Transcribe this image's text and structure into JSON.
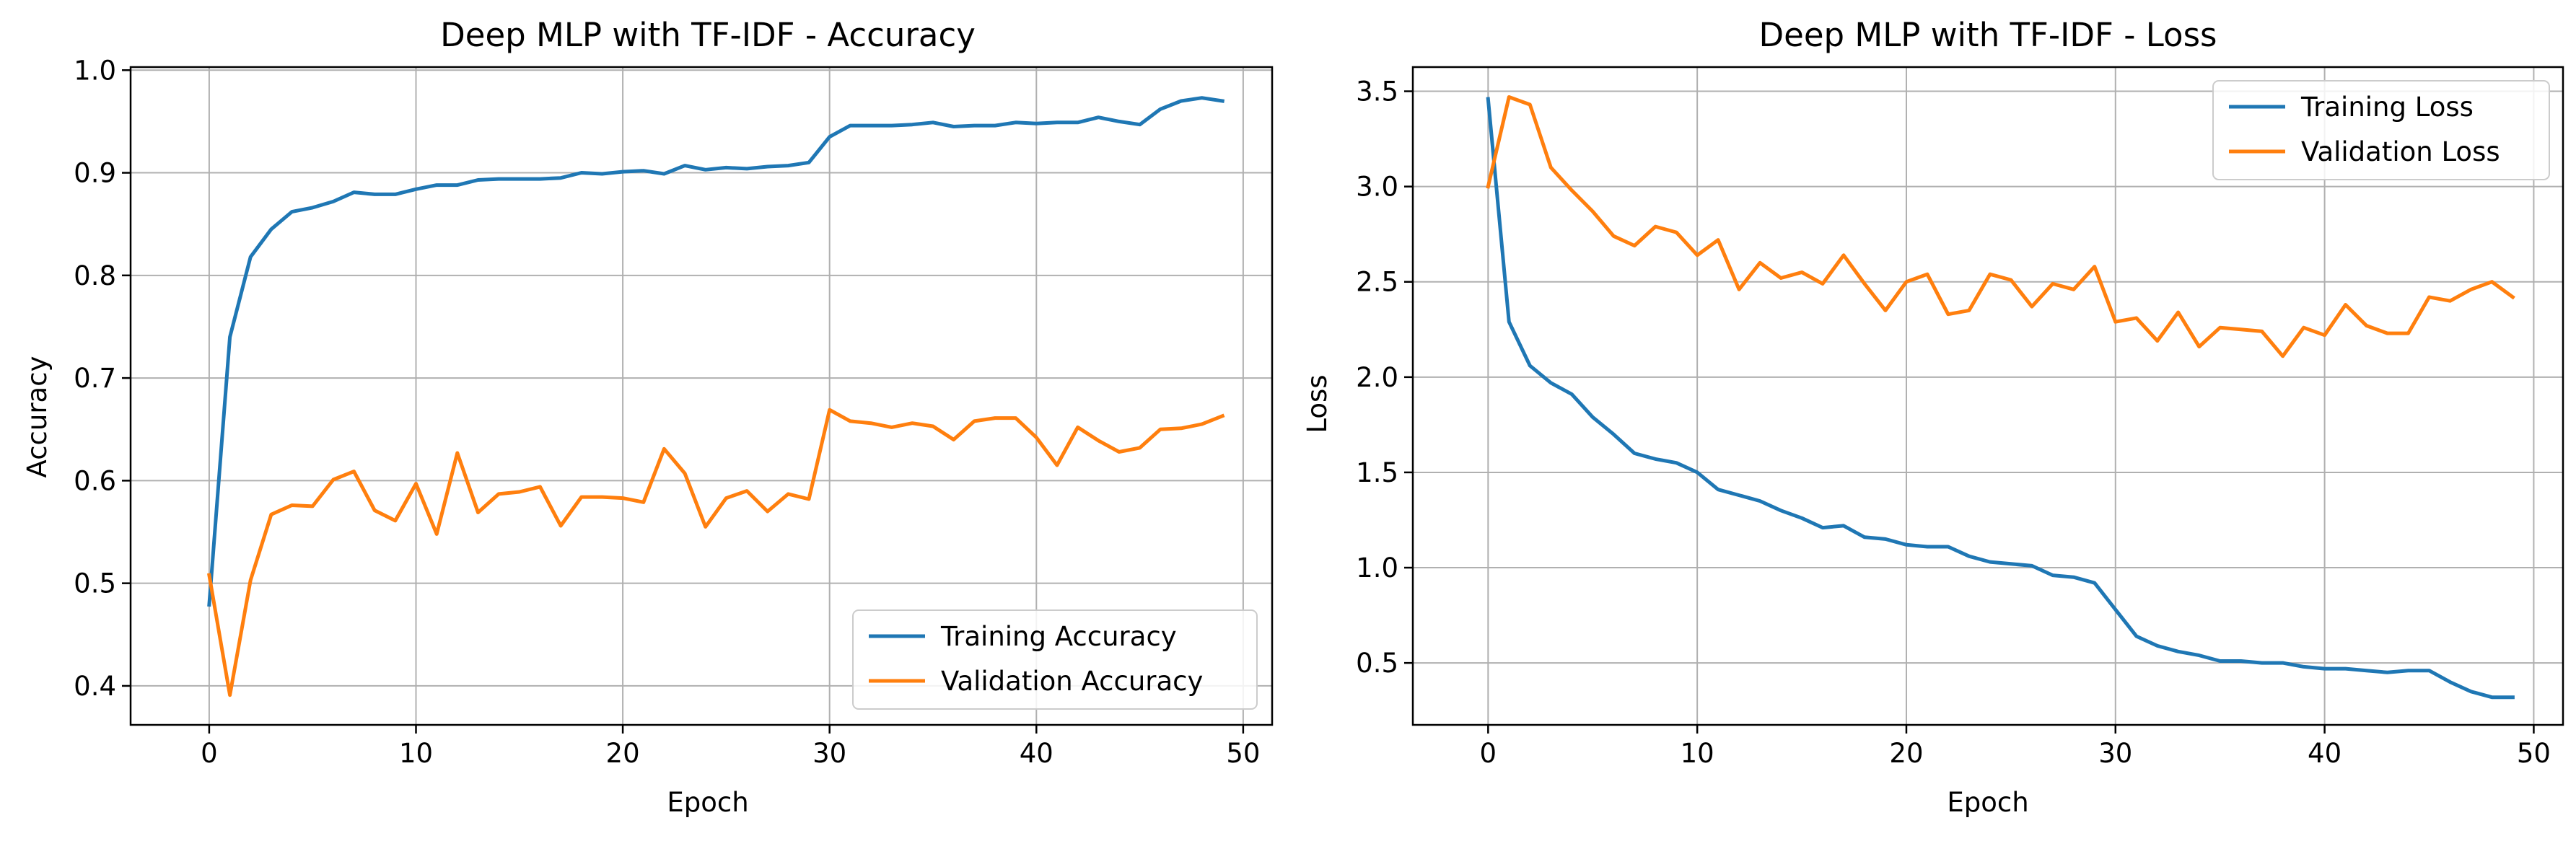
{
  "chart_data": [
    {
      "type": "line",
      "title": "Deep MLP with TF-IDF - Accuracy",
      "xlabel": "Epoch",
      "ylabel": "Accuracy",
      "xlim": [
        -3.8,
        51.4
      ],
      "ylim": [
        0.362,
        1.003
      ],
      "xticks": [
        0,
        10,
        20,
        30,
        40,
        50
      ],
      "yticks": [
        0.4,
        0.5,
        0.6,
        0.7,
        0.8,
        0.9,
        1.0
      ],
      "xtick_labels": [
        "0",
        "10",
        "20",
        "30",
        "40",
        "50"
      ],
      "ytick_labels": [
        "0.4",
        "0.5",
        "0.6",
        "0.7",
        "0.8",
        "0.9",
        "1.0"
      ],
      "grid": true,
      "legend_position": "lower-right",
      "series": [
        {
          "name": "Training Accuracy",
          "color": "#1f77b4",
          "x": [
            0,
            1,
            2,
            3,
            4,
            5,
            6,
            7,
            8,
            9,
            10,
            11,
            12,
            13,
            14,
            15,
            16,
            17,
            18,
            19,
            20,
            21,
            22,
            23,
            24,
            25,
            26,
            27,
            28,
            29,
            30,
            31,
            32,
            33,
            34,
            35,
            36,
            37,
            38,
            39,
            40,
            41,
            42,
            43,
            44,
            45,
            46,
            47,
            48,
            49
          ],
          "y": [
            0.479,
            0.74,
            0.818,
            0.845,
            0.862,
            0.866,
            0.872,
            0.881,
            0.879,
            0.879,
            0.884,
            0.888,
            0.888,
            0.893,
            0.894,
            0.894,
            0.894,
            0.895,
            0.9,
            0.899,
            0.901,
            0.902,
            0.899,
            0.907,
            0.903,
            0.905,
            0.904,
            0.906,
            0.907,
            0.91,
            0.935,
            0.946,
            0.946,
            0.946,
            0.947,
            0.949,
            0.945,
            0.946,
            0.946,
            0.949,
            0.948,
            0.949,
            0.949,
            0.954,
            0.95,
            0.947,
            0.962,
            0.97,
            0.973,
            0.97
          ]
        },
        {
          "name": "Validation Accuracy",
          "color": "#ff7f0e",
          "x": [
            0,
            1,
            2,
            3,
            4,
            5,
            6,
            7,
            8,
            9,
            10,
            11,
            12,
            13,
            14,
            15,
            16,
            17,
            18,
            19,
            20,
            21,
            22,
            23,
            24,
            25,
            26,
            27,
            28,
            29,
            30,
            31,
            32,
            33,
            34,
            35,
            36,
            37,
            38,
            39,
            40,
            41,
            42,
            43,
            44,
            45,
            46,
            47,
            48,
            49
          ],
          "y": [
            0.508,
            0.391,
            0.503,
            0.567,
            0.576,
            0.575,
            0.601,
            0.609,
            0.571,
            0.561,
            0.597,
            0.548,
            0.627,
            0.569,
            0.587,
            0.589,
            0.594,
            0.556,
            0.584,
            0.584,
            0.583,
            0.579,
            0.631,
            0.607,
            0.555,
            0.583,
            0.59,
            0.57,
            0.587,
            0.582,
            0.669,
            0.658,
            0.656,
            0.652,
            0.656,
            0.653,
            0.64,
            0.658,
            0.661,
            0.661,
            0.642,
            0.615,
            0.652,
            0.639,
            0.628,
            0.632,
            0.65,
            0.651,
            0.655,
            0.663
          ]
        }
      ]
    },
    {
      "type": "line",
      "title": "Deep MLP with TF-IDF - Loss",
      "xlabel": "Epoch",
      "ylabel": "Loss",
      "xlim": [
        -3.6,
        51.4
      ],
      "ylim": [
        0.175,
        3.627
      ],
      "xticks": [
        0,
        10,
        20,
        30,
        40,
        50
      ],
      "yticks": [
        0.5,
        1.0,
        1.5,
        2.0,
        2.5,
        3.0,
        3.5
      ],
      "xtick_labels": [
        "0",
        "10",
        "20",
        "30",
        "40",
        "50"
      ],
      "ytick_labels": [
        "0.5",
        "1.0",
        "1.5",
        "2.0",
        "2.5",
        "3.0",
        "3.5"
      ],
      "grid": true,
      "legend_position": "upper-right",
      "series": [
        {
          "name": "Training Loss",
          "color": "#1f77b4",
          "x": [
            0,
            1,
            2,
            3,
            4,
            5,
            6,
            7,
            8,
            9,
            10,
            11,
            12,
            13,
            14,
            15,
            16,
            17,
            18,
            19,
            20,
            21,
            22,
            23,
            24,
            25,
            26,
            27,
            28,
            29,
            30,
            31,
            32,
            33,
            34,
            35,
            36,
            37,
            38,
            39,
            40,
            41,
            42,
            43,
            44,
            45,
            46,
            47,
            48,
            49
          ],
          "y": [
            3.46,
            2.29,
            2.06,
            1.97,
            1.91,
            1.79,
            1.7,
            1.6,
            1.57,
            1.55,
            1.5,
            1.41,
            1.38,
            1.35,
            1.3,
            1.26,
            1.21,
            1.22,
            1.16,
            1.15,
            1.12,
            1.11,
            1.11,
            1.06,
            1.03,
            1.02,
            1.01,
            0.96,
            0.95,
            0.92,
            0.78,
            0.64,
            0.59,
            0.56,
            0.54,
            0.51,
            0.51,
            0.5,
            0.5,
            0.48,
            0.47,
            0.47,
            0.46,
            0.45,
            0.46,
            0.46,
            0.4,
            0.35,
            0.32,
            0.32
          ]
        },
        {
          "name": "Validation Loss",
          "color": "#ff7f0e",
          "x": [
            0,
            1,
            2,
            3,
            4,
            5,
            6,
            7,
            8,
            9,
            10,
            11,
            12,
            13,
            14,
            15,
            16,
            17,
            18,
            19,
            20,
            21,
            22,
            23,
            24,
            25,
            26,
            27,
            28,
            29,
            30,
            31,
            32,
            33,
            34,
            35,
            36,
            37,
            38,
            39,
            40,
            41,
            42,
            43,
            44,
            45,
            46,
            47,
            48,
            49
          ],
          "y": [
            3.0,
            3.47,
            3.43,
            3.1,
            2.98,
            2.87,
            2.74,
            2.69,
            2.79,
            2.76,
            2.64,
            2.72,
            2.46,
            2.6,
            2.52,
            2.55,
            2.49,
            2.64,
            2.49,
            2.35,
            2.5,
            2.54,
            2.33,
            2.35,
            2.54,
            2.51,
            2.37,
            2.49,
            2.46,
            2.58,
            2.29,
            2.31,
            2.19,
            2.34,
            2.16,
            2.26,
            2.25,
            2.24,
            2.11,
            2.26,
            2.22,
            2.38,
            2.27,
            2.23,
            2.23,
            2.42,
            2.4,
            2.46,
            2.5,
            2.42
          ]
        }
      ]
    }
  ]
}
